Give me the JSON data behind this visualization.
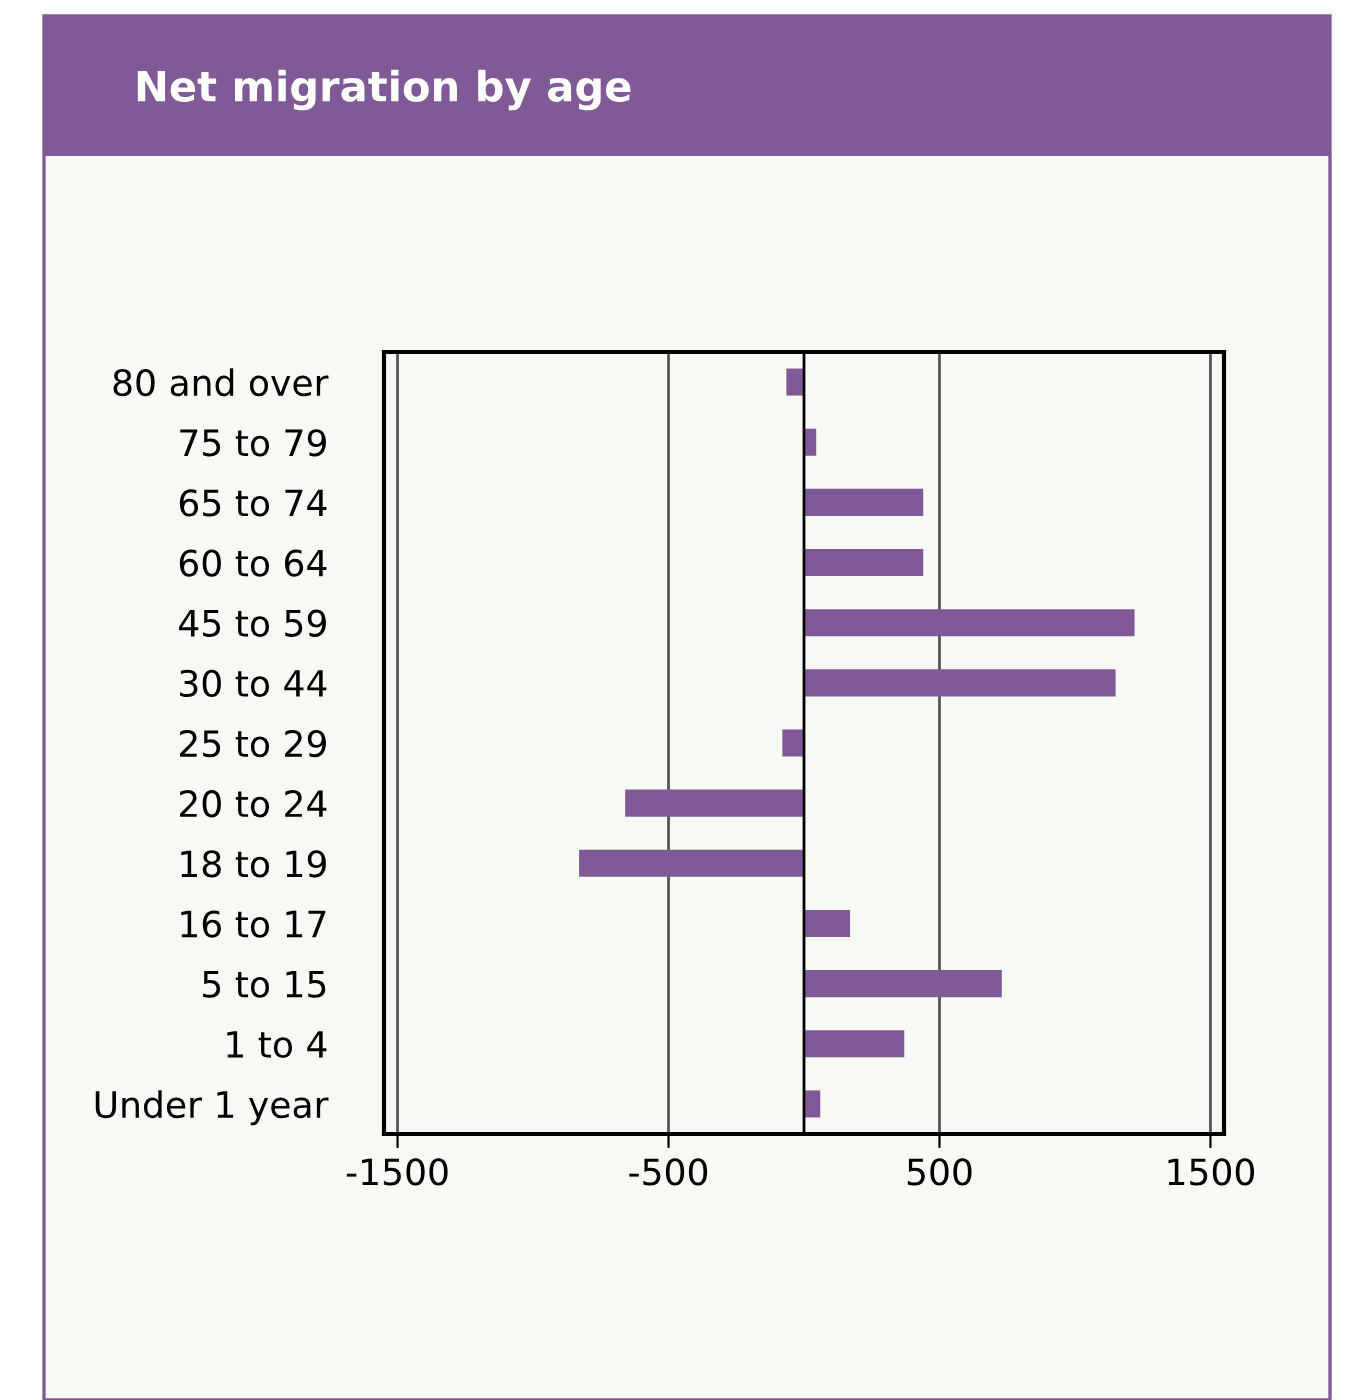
{
  "chart_data": {
    "type": "bar",
    "orientation": "horizontal",
    "title": "Net migration by age",
    "categories": [
      "80 and over",
      "75 to 79",
      "65 to 74",
      "60 to 64",
      "45 to 59",
      "30 to 44",
      "25 to 29",
      "20 to 24",
      "18 to 19",
      "16 to 17",
      "5 to 15",
      "1 to 4",
      "Under 1 year"
    ],
    "values": [
      -65,
      45,
      440,
      440,
      1220,
      1150,
      -80,
      -660,
      -830,
      170,
      730,
      370,
      60
    ],
    "color": "#7f5a96",
    "xlim": [
      -1550,
      1550
    ],
    "xticks": [
      -1500,
      -500,
      500,
      1500
    ],
    "grid": "x"
  }
}
